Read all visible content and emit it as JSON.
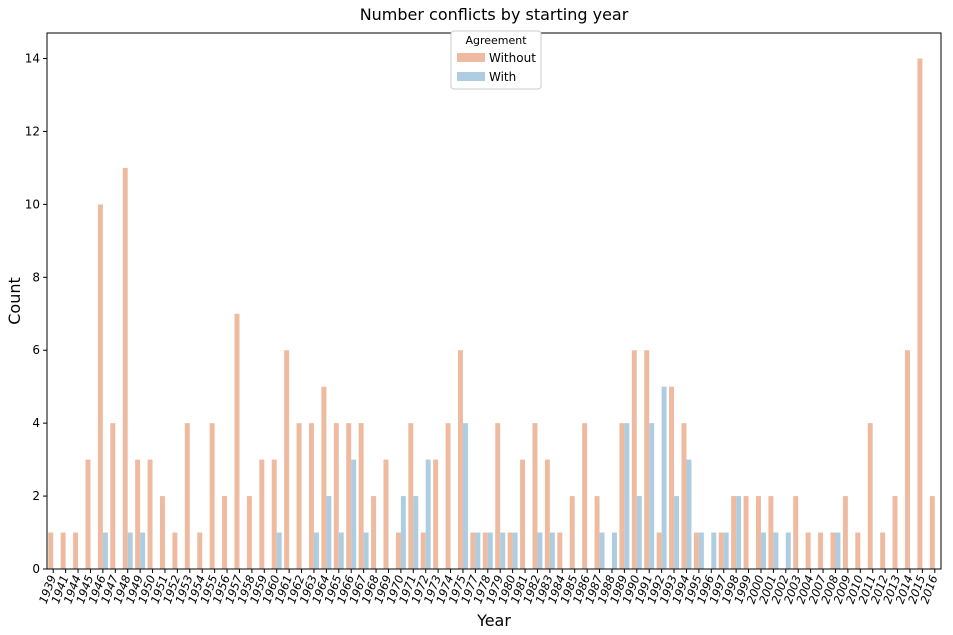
{
  "chart_data": {
    "type": "bar",
    "title": "Number conflicts by starting year",
    "xlabel": "Year",
    "ylabel": "Count",
    "ylim": [
      0,
      14.7
    ],
    "yticks": [
      0,
      2,
      4,
      6,
      8,
      10,
      12,
      14
    ],
    "grid": false,
    "legend": {
      "title": "Agreement",
      "placement": "top-center"
    },
    "categories": [
      "1939",
      "1941",
      "1944",
      "1945",
      "1946",
      "1947",
      "1948",
      "1949",
      "1950",
      "1951",
      "1952",
      "1953",
      "1954",
      "1955",
      "1956",
      "1957",
      "1958",
      "1959",
      "1960",
      "1961",
      "1962",
      "1963",
      "1964",
      "1965",
      "1966",
      "1967",
      "1968",
      "1969",
      "1970",
      "1971",
      "1972",
      "1973",
      "1974",
      "1975",
      "1977",
      "1978",
      "1979",
      "1980",
      "1981",
      "1982",
      "1983",
      "1984",
      "1985",
      "1986",
      "1987",
      "1988",
      "1989",
      "1990",
      "1991",
      "1992",
      "1993",
      "1994",
      "1995",
      "1996",
      "1997",
      "1998",
      "1999",
      "2000",
      "2001",
      "2002",
      "2003",
      "2004",
      "2007",
      "2008",
      "2009",
      "2010",
      "2011",
      "2012",
      "2013",
      "2014",
      "2015",
      "2016"
    ],
    "series": [
      {
        "name": "Without",
        "color": "#eebba0",
        "values": [
          1,
          1,
          1,
          3,
          10,
          4,
          11,
          3,
          3,
          2,
          1,
          4,
          1,
          4,
          2,
          7,
          2,
          3,
          3,
          6,
          4,
          4,
          5,
          4,
          4,
          4,
          2,
          3,
          1,
          4,
          1,
          3,
          4,
          6,
          1,
          1,
          4,
          1,
          3,
          4,
          3,
          1,
          2,
          4,
          2,
          0,
          4,
          6,
          6,
          1,
          5,
          4,
          1,
          0,
          1,
          2,
          2,
          2,
          2,
          0,
          2,
          1,
          1,
          1,
          2,
          1,
          4,
          1,
          2,
          6,
          14,
          2
        ]
      },
      {
        "name": "With",
        "color": "#aecde1",
        "values": [
          0,
          0,
          0,
          0,
          1,
          0,
          1,
          1,
          0,
          0,
          0,
          0,
          0,
          0,
          0,
          0,
          0,
          0,
          1,
          0,
          0,
          1,
          2,
          1,
          3,
          1,
          0,
          0,
          2,
          2,
          3,
          0,
          0,
          4,
          1,
          1,
          1,
          1,
          0,
          1,
          1,
          0,
          0,
          0,
          1,
          1,
          4,
          2,
          4,
          5,
          2,
          3,
          1,
          1,
          1,
          2,
          0,
          1,
          1,
          1,
          0,
          0,
          0,
          1,
          0,
          0,
          0,
          0,
          0,
          0,
          0,
          0
        ]
      }
    ]
  }
}
